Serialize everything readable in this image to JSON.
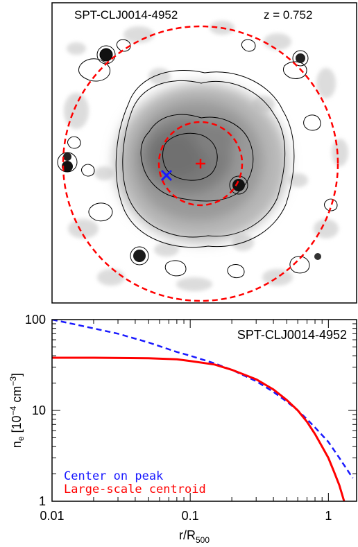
{
  "image_panel": {
    "cluster_name": "SPT-CLJ0014-4952",
    "redshift": "z = 0.752"
  },
  "chart_data": {
    "type": "line",
    "title": "SPT-CLJ0014-4952",
    "xlabel": "r/R",
    "xlabel_sub": "500",
    "ylabel_main": "n",
    "ylabel_sub": "e",
    "ylabel_units_pre": " [10",
    "ylabel_units_exp": "−4",
    "ylabel_units_post": " cm",
    "ylabel_units_exp2": "−3",
    "ylabel_units_close": "]",
    "x_scale": "log",
    "y_scale": "log",
    "xlim": [
      0.01,
      1.6
    ],
    "ylim": [
      1,
      100
    ],
    "x_ticks": [
      {
        "v": 0.01,
        "label": "0.01"
      },
      {
        "v": 0.1,
        "label": "0.1"
      },
      {
        "v": 1,
        "label": "1"
      }
    ],
    "y_ticks": [
      {
        "v": 1,
        "label": "1"
      },
      {
        "v": 10,
        "label": "10"
      },
      {
        "v": 100,
        "label": "100"
      }
    ],
    "legend_placement": "bottom-left",
    "series": [
      {
        "name": "Center on peak",
        "color": "#1a1aff",
        "dash": "dashed",
        "x": [
          0.01,
          0.015,
          0.02,
          0.03,
          0.05,
          0.08,
          0.1,
          0.15,
          0.2,
          0.3,
          0.4,
          0.5,
          0.6,
          0.7,
          0.8,
          1.0,
          1.2,
          1.5
        ],
        "y": [
          100,
          88,
          80,
          70,
          56,
          44,
          40,
          33,
          28,
          21,
          16,
          12.5,
          10,
          8,
          6.5,
          4.5,
          3.0,
          1.8
        ]
      },
      {
        "name": "Large-scale centroid",
        "color": "#ff0000",
        "dash": "solid",
        "x": [
          0.01,
          0.02,
          0.05,
          0.08,
          0.1,
          0.15,
          0.2,
          0.3,
          0.4,
          0.5,
          0.6,
          0.7,
          0.8,
          0.9,
          1.0,
          1.1,
          1.2,
          1.3
        ],
        "y": [
          38,
          38,
          37.5,
          36.5,
          35,
          32,
          28,
          22,
          17,
          13,
          10,
          7.5,
          5.5,
          4.0,
          3.0,
          2.1,
          1.5,
          1.0
        ]
      }
    ]
  },
  "colors": {
    "peak": "#1a1aff",
    "centroid": "#ff0000"
  }
}
